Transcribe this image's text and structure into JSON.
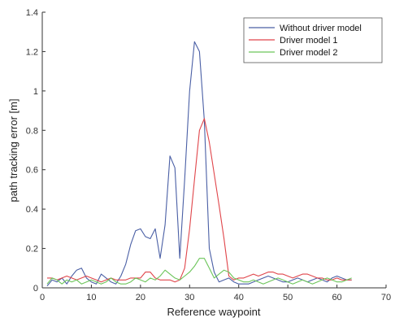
{
  "chart_data": {
    "type": "line",
    "title": "",
    "xlabel": "Reference waypoint",
    "ylabel": "path tracking error [m]",
    "xlim": [
      0,
      70
    ],
    "ylim": [
      0,
      1.4
    ],
    "xticks": [
      "0",
      "10",
      "20",
      "30",
      "40",
      "50",
      "60",
      "70"
    ],
    "yticks": [
      "0",
      "0.2",
      "0.4",
      "0.6",
      "0.8",
      "1",
      "1.2",
      "1.4"
    ],
    "legend_position": "top-right",
    "grid": false,
    "series": [
      {
        "name": "Without driver model",
        "color": "#4a5fa5",
        "x": [
          1,
          2,
          3,
          4,
          5,
          6,
          7,
          8,
          9,
          10,
          11,
          12,
          13,
          14,
          15,
          16,
          17,
          18,
          19,
          20,
          21,
          22,
          23,
          24,
          25,
          26,
          27,
          28,
          29,
          30,
          31,
          32,
          33,
          34,
          35,
          36,
          37,
          38,
          39,
          40,
          41,
          42,
          43,
          44,
          45,
          46,
          47,
          48,
          49,
          50,
          51,
          52,
          53,
          54,
          55,
          56,
          57,
          58,
          59,
          60,
          61,
          62,
          63
        ],
        "y": [
          0.01,
          0.04,
          0.03,
          0.05,
          0.02,
          0.06,
          0.09,
          0.1,
          0.05,
          0.03,
          0.02,
          0.07,
          0.05,
          0.03,
          0.02,
          0.06,
          0.12,
          0.22,
          0.29,
          0.3,
          0.26,
          0.25,
          0.3,
          0.15,
          0.32,
          0.67,
          0.61,
          0.15,
          0.55,
          1.0,
          1.25,
          1.2,
          0.85,
          0.2,
          0.08,
          0.03,
          0.04,
          0.05,
          0.03,
          0.02,
          0.02,
          0.02,
          0.03,
          0.04,
          0.05,
          0.06,
          0.05,
          0.04,
          0.03,
          0.03,
          0.04,
          0.05,
          0.04,
          0.03,
          0.04,
          0.05,
          0.04,
          0.03,
          0.05,
          0.06,
          0.05,
          0.04,
          0.04
        ]
      },
      {
        "name": "Driver model 1",
        "color": "#e0454a",
        "x": [
          1,
          2,
          3,
          4,
          5,
          6,
          7,
          8,
          9,
          10,
          11,
          12,
          13,
          14,
          15,
          16,
          17,
          18,
          19,
          20,
          21,
          22,
          23,
          24,
          25,
          26,
          27,
          28,
          29,
          30,
          31,
          32,
          33,
          34,
          35,
          36,
          37,
          38,
          39,
          40,
          41,
          42,
          43,
          44,
          45,
          46,
          47,
          48,
          49,
          50,
          51,
          52,
          53,
          54,
          55,
          56,
          57,
          58,
          59,
          60,
          61,
          62,
          63
        ],
        "y": [
          0.05,
          0.05,
          0.04,
          0.05,
          0.06,
          0.05,
          0.04,
          0.05,
          0.06,
          0.05,
          0.04,
          0.03,
          0.04,
          0.05,
          0.04,
          0.04,
          0.04,
          0.05,
          0.05,
          0.05,
          0.08,
          0.08,
          0.05,
          0.04,
          0.04,
          0.04,
          0.03,
          0.04,
          0.1,
          0.3,
          0.55,
          0.8,
          0.86,
          0.74,
          0.58,
          0.42,
          0.25,
          0.06,
          0.04,
          0.05,
          0.05,
          0.06,
          0.07,
          0.06,
          0.07,
          0.08,
          0.08,
          0.07,
          0.07,
          0.06,
          0.05,
          0.06,
          0.07,
          0.07,
          0.06,
          0.05,
          0.05,
          0.04,
          0.04,
          0.05,
          0.04,
          0.04,
          0.04
        ]
      },
      {
        "name": "Driver model 2",
        "color": "#6cc55a",
        "x": [
          1,
          2,
          3,
          4,
          5,
          6,
          7,
          8,
          9,
          10,
          11,
          12,
          13,
          14,
          15,
          16,
          17,
          18,
          19,
          20,
          21,
          22,
          23,
          24,
          25,
          26,
          27,
          28,
          29,
          30,
          31,
          32,
          33,
          34,
          35,
          36,
          37,
          38,
          39,
          40,
          41,
          42,
          43,
          44,
          45,
          46,
          47,
          48,
          49,
          50,
          51,
          52,
          53,
          54,
          55,
          56,
          57,
          58,
          59,
          60,
          61,
          62,
          63
        ],
        "y": [
          0.02,
          0.05,
          0.04,
          0.02,
          0.04,
          0.03,
          0.04,
          0.02,
          0.03,
          0.04,
          0.03,
          0.02,
          0.03,
          0.05,
          0.03,
          0.02,
          0.02,
          0.03,
          0.05,
          0.04,
          0.03,
          0.05,
          0.04,
          0.06,
          0.09,
          0.07,
          0.05,
          0.04,
          0.06,
          0.08,
          0.11,
          0.15,
          0.15,
          0.1,
          0.05,
          0.07,
          0.09,
          0.08,
          0.05,
          0.04,
          0.03,
          0.03,
          0.04,
          0.03,
          0.02,
          0.03,
          0.04,
          0.05,
          0.04,
          0.03,
          0.02,
          0.03,
          0.04,
          0.03,
          0.02,
          0.03,
          0.04,
          0.05,
          0.04,
          0.03,
          0.03,
          0.04,
          0.05
        ]
      }
    ]
  }
}
